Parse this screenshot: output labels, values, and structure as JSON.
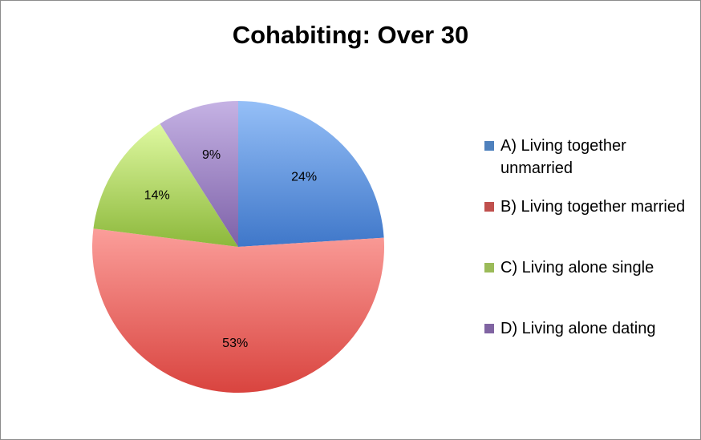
{
  "chart_data": {
    "type": "pie",
    "title": "Cohabiting: Over 30",
    "slices": [
      {
        "label": "A) Living together unmarried",
        "value": 24,
        "display": "24%",
        "color": "#4f81bd"
      },
      {
        "label": "B) Living together married",
        "value": 53,
        "display": "53%",
        "color": "#c0504d"
      },
      {
        "label": "C) Living alone single",
        "value": 14,
        "display": "14%",
        "color": "#9bbb59"
      },
      {
        "label": "D) Living alone dating",
        "value": 9,
        "display": "9%",
        "color": "#8064a2"
      }
    ],
    "legend_position": "right"
  }
}
